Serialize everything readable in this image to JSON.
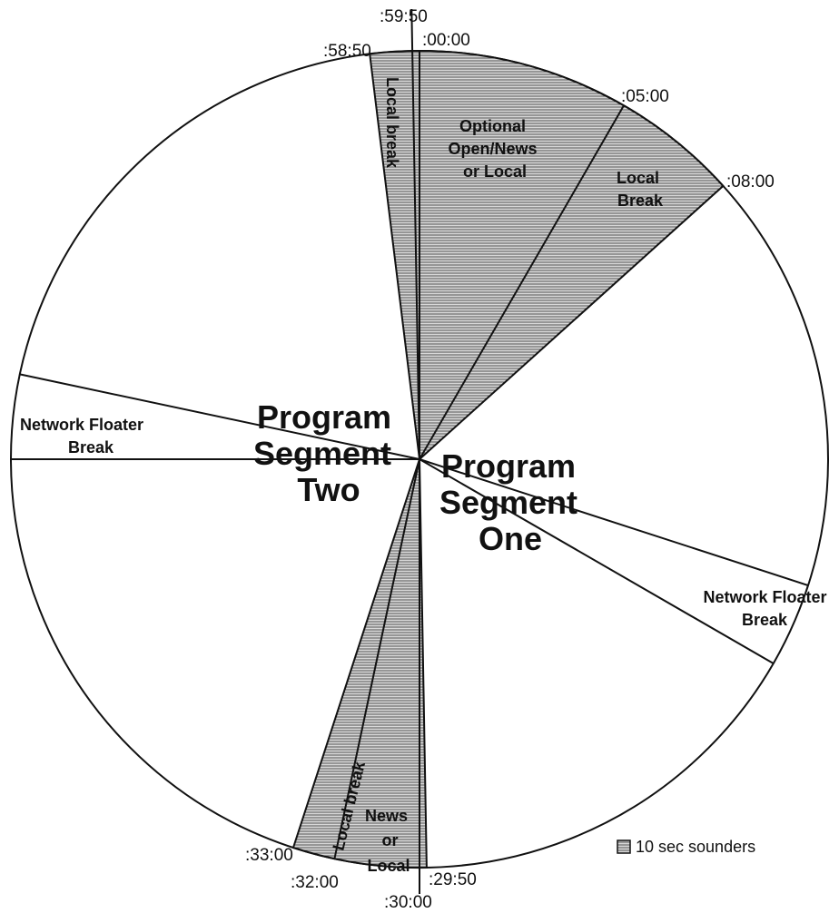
{
  "times": {
    "t5950": ":59:50",
    "t5850": ":58:50",
    "t0000": ":00:00",
    "t0500": ":05:00",
    "t0800": ":08:00",
    "t3300": ":33:00",
    "t3200": ":32:00",
    "t2950": ":29:50",
    "t3000": ":30:00"
  },
  "segments": {
    "open": [
      "Optional",
      "Open/News",
      "or Local"
    ],
    "local_break_right": [
      "Local",
      "Break"
    ],
    "local_break_top": "Local break",
    "local_break_bottom": "Local break",
    "news_or_local": [
      "News",
      "or",
      "Local"
    ],
    "floater_left": [
      "Network Floater",
      "Break"
    ],
    "floater_right": [
      "Network Floater",
      "Break"
    ],
    "segment_two": [
      "Program",
      "Segment",
      "Two"
    ],
    "segment_one": [
      "Program",
      "Segment",
      "One"
    ]
  },
  "legend": "10 sec sounders"
}
